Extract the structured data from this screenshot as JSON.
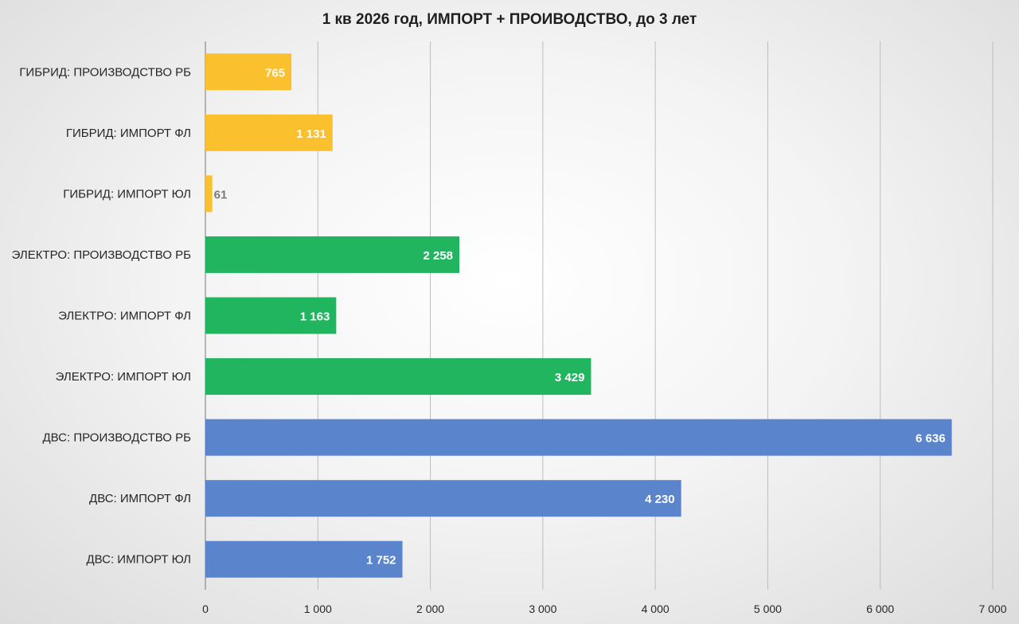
{
  "chart_data": {
    "type": "bar",
    "orientation": "horizontal",
    "title": "1 кв 2026 год, ИМПОРТ + ПРОИВОДСТВО, до 3 лет",
    "xlabel": "",
    "ylabel": "",
    "xlim": [
      0,
      7000
    ],
    "x_ticks": [
      0,
      1000,
      2000,
      3000,
      4000,
      5000,
      6000,
      7000
    ],
    "x_tick_labels": [
      "0",
      "1 000",
      "2 000",
      "3 000",
      "4 000",
      "5 000",
      "6 000",
      "7 000"
    ],
    "grid": true,
    "legend": "none",
    "categories": [
      "ГИБРИД: ПРОИЗВОДСТВО РБ",
      "ГИБРИД: ИМПОРТ ФЛ",
      "ГИБРИД: ИМПОРТ ЮЛ",
      "ЭЛЕКТРО: ПРОИЗВОДСТВО РБ",
      "ЭЛЕКТРО: ИМПОРТ ФЛ",
      "ЭЛЕКТРО: ИМПОРТ ЮЛ",
      "ДВС: ПРОИЗВОДСТВО РБ",
      "ДВС: ИМПОРТ ФЛ",
      "ДВС: ИМПОРТ ЮЛ"
    ],
    "values": [
      765,
      1131,
      61,
      2258,
      1163,
      3429,
      6636,
      4230,
      1752
    ],
    "value_labels": [
      "765",
      "1 131",
      "61",
      "2 258",
      "1 163",
      "3 429",
      "6 636",
      "4 230",
      "1 752"
    ],
    "colors": [
      "#FBC02D",
      "#FBC02D",
      "#FBC02D",
      "#22B560",
      "#22B560",
      "#22B560",
      "#5A84CC",
      "#5A84CC",
      "#5A84CC"
    ],
    "label_colors": [
      "#ffffff",
      "#ffffff",
      "#7a7a7a",
      "#ffffff",
      "#ffffff",
      "#ffffff",
      "#ffffff",
      "#ffffff",
      "#ffffff"
    ]
  }
}
